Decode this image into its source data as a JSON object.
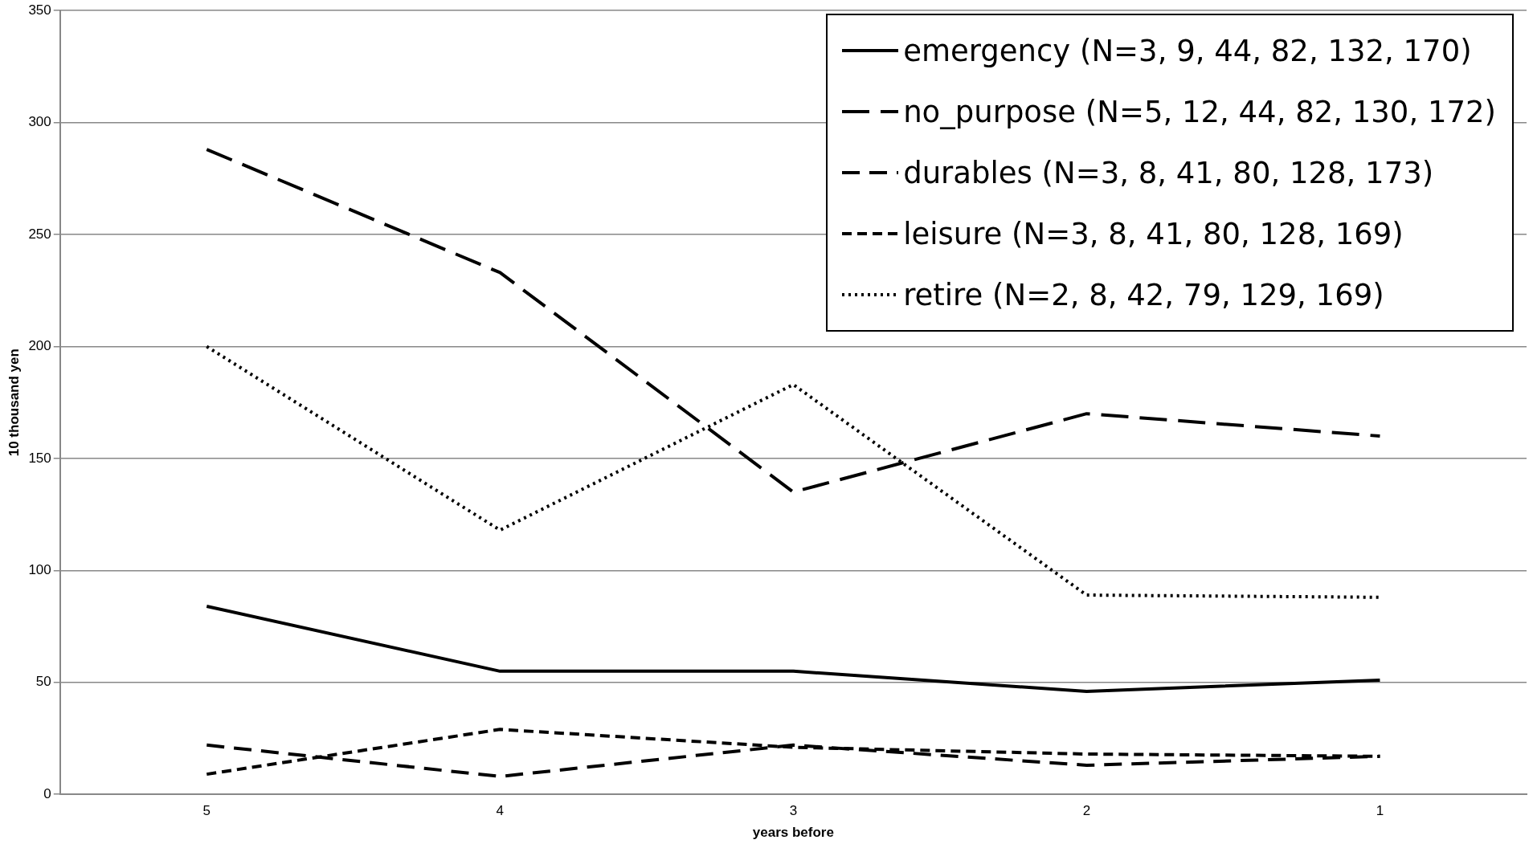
{
  "chart_data": {
    "type": "line",
    "xlabel": "years before",
    "ylabel": "10 thousand yen",
    "categories": [
      "5",
      "4",
      "3",
      "2",
      "1"
    ],
    "series": [
      {
        "name": "emergency (N=3, 9, 44, 82, 132, 170)",
        "color": "#000000",
        "line_style": "solid",
        "values": [
          84,
          55,
          55,
          46,
          51
        ]
      },
      {
        "name": "no_purpose (N=5, 12, 44, 82, 130, 172)",
        "color": "#000000",
        "line_style": "dashed",
        "values": [
          288,
          233,
          135,
          170,
          160
        ]
      },
      {
        "name": "durables (N=3, 8, 41, 80, 128, 173)",
        "color": "#000000",
        "line_style": "dashed",
        "values": [
          22,
          8,
          22,
          13,
          17
        ]
      },
      {
        "name": "leisure (N=3, 8, 41, 80, 128, 169)",
        "color": "#000000",
        "line_style": "dashed",
        "values": [
          9,
          29,
          21,
          18,
          17
        ]
      },
      {
        "name": "retire (N=2, 8, 42, 79, 129, 169)",
        "color": "#000000",
        "line_style": "dotted",
        "values": [
          200,
          118,
          183,
          89,
          88
        ]
      }
    ],
    "ylim": [
      0,
      350
    ],
    "yticks": [
      0,
      50,
      100,
      150,
      200,
      250,
      300,
      350
    ],
    "grid": "y",
    "legend": "top right",
    "marker": "none"
  }
}
